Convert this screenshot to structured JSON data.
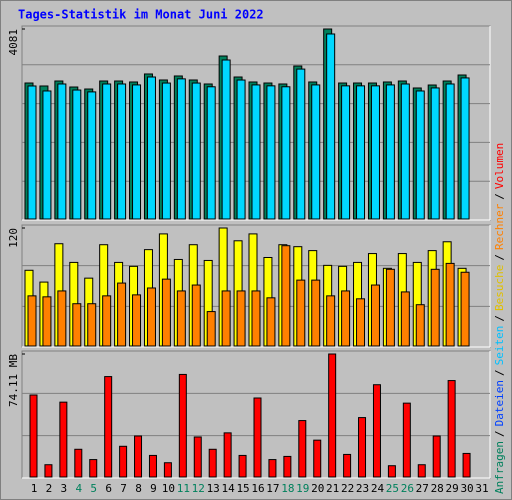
{
  "title": "Tages-Statistik im Monat Juni 2022",
  "legend_separator": "/",
  "legend": [
    {
      "name": "Anfragen",
      "color": "#00805c"
    },
    {
      "name": "Dateien",
      "color": "#0040ff"
    },
    {
      "name": "Seiten",
      "color": "#00c0ff"
    },
    {
      "name": "Besuche",
      "color": "#e0c000"
    },
    {
      "name": "Rechner",
      "color": "#ff8000"
    },
    {
      "name": "Volumen",
      "color": "#ff0000"
    }
  ],
  "chart_data": [
    {
      "type": "bar",
      "categories": [
        "1",
        "2",
        "3",
        "4",
        "5",
        "6",
        "7",
        "8",
        "9",
        "10",
        "11",
        "12",
        "13",
        "14",
        "15",
        "16",
        "17",
        "18",
        "19",
        "20",
        "21",
        "22",
        "23",
        "24",
        "25",
        "26",
        "27",
        "28",
        "29",
        "30",
        "31"
      ],
      "category_colors": [
        "#000000",
        "#000000",
        "#000000",
        "#00805c",
        "#00805c",
        "#000000",
        "#000000",
        "#000000",
        "#000000",
        "#000000",
        "#00805c",
        "#00805c",
        "#000000",
        "#000000",
        "#000000",
        "#000000",
        "#000000",
        "#00805c",
        "#00805c",
        "#000000",
        "#000000",
        "#000000",
        "#000000",
        "#000000",
        "#00805c",
        "#00805c",
        "#000000",
        "#000000",
        "#000000",
        "#000000",
        "#000000"
      ],
      "ylim": [
        0,
        4081
      ],
      "yticks": [
        4081
      ],
      "series": [
        {
          "color": "#00805c",
          "values": [
            2921,
            2857,
            2964,
            2835,
            2792,
            2964,
            2964,
            2943,
            3115,
            2986,
            3072,
            2986,
            2900,
            3501,
            3050,
            2943,
            2921,
            2900,
            3286,
            2943,
            4081,
            2921,
            2921,
            2921,
            2943,
            2964,
            2814,
            2878,
            2964,
            3093,
            null
          ]
        },
        {
          "color": "#00d8ff",
          "values": [
            2857,
            2750,
            2900,
            2770,
            2730,
            2900,
            2900,
            2880,
            3050,
            2920,
            3010,
            2920,
            2840,
            3415,
            2985,
            2880,
            2860,
            2840,
            3220,
            2880,
            3974,
            2860,
            2860,
            2860,
            2880,
            2900,
            2750,
            2815,
            2900,
            3030,
            null
          ]
        }
      ]
    },
    {
      "type": "bar",
      "ylim": [
        0,
        120
      ],
      "yticks": [
        120
      ],
      "series": [
        {
          "color": "#ffff00",
          "values": [
            77,
            65,
            104,
            85,
            69,
            103,
            85,
            81,
            98,
            114,
            88,
            103,
            87,
            120,
            107,
            114,
            90,
            103,
            101,
            97,
            82,
            81,
            85,
            94,
            79,
            94,
            85,
            97,
            106,
            79,
            null
          ]
        },
        {
          "color": "#ff8000",
          "values": [
            51,
            50,
            56,
            43,
            43,
            51,
            64,
            52,
            59,
            68,
            56,
            62,
            35,
            56,
            56,
            56,
            49,
            102,
            67,
            67,
            51,
            56,
            48,
            62,
            78,
            55,
            42,
            78,
            84,
            75,
            null
          ]
        }
      ]
    },
    {
      "type": "bar",
      "ylim": [
        0,
        74.11
      ],
      "yticks": [
        {
          "value": 74.11,
          "label": "74.11 MB"
        }
      ],
      "series": [
        {
          "color": "#ff0000",
          "values": [
            49.4,
            7.4,
            45.1,
            16.7,
            10.5,
            60.5,
            18.5,
            24.7,
            13.0,
            8.6,
            61.8,
            24.1,
            16.7,
            26.6,
            13.0,
            47.6,
            10.5,
            12.4,
            34.0,
            22.2,
            74.11,
            13.6,
            35.8,
            55.6,
            6.8,
            44.5,
            7.4,
            24.7,
            58.1,
            14.2,
            null
          ]
        }
      ]
    }
  ]
}
